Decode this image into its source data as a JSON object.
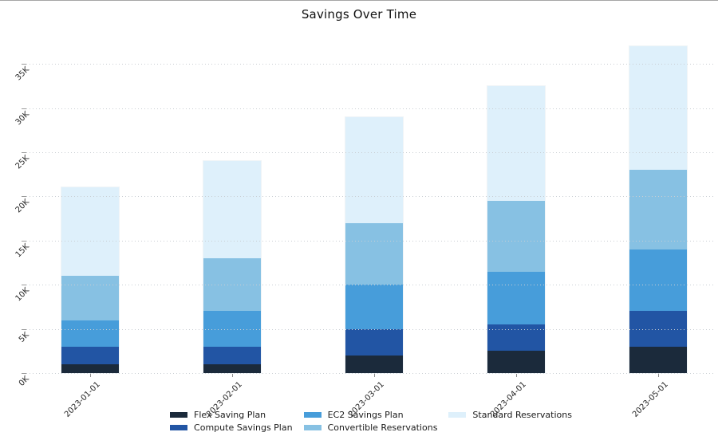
{
  "chart_data": {
    "type": "bar",
    "stacked": true,
    "title": "Savings Over Time",
    "categories": [
      "2023-01-01",
      "2023-02-01",
      "2023-03-01",
      "2023-04-01",
      "2023-05-01"
    ],
    "series": [
      {
        "name": "Flex Saving Plan",
        "color": "#1b2a3b",
        "values": [
          1000,
          1000,
          2000,
          2500,
          3000
        ]
      },
      {
        "name": "Compute Savings Plan",
        "color": "#2255a4",
        "values": [
          2000,
          2000,
          3000,
          3000,
          4000
        ]
      },
      {
        "name": "EC2 Savings Plan",
        "color": "#479dda",
        "values": [
          3000,
          4000,
          5000,
          6000,
          7000
        ]
      },
      {
        "name": "Convertible Reservations",
        "color": "#87c1e3",
        "values": [
          5000,
          6000,
          7000,
          8000,
          9000
        ]
      },
      {
        "name": "Standard Reservations",
        "color": "#def0fb",
        "values": [
          10000,
          11000,
          12000,
          13000,
          14000
        ]
      }
    ],
    "stack_totals": [
      21000,
      24000,
      29000,
      32500,
      37000
    ],
    "xlabel": "",
    "ylabel": "",
    "ylim": [
      0,
      37000
    ],
    "ytick_step": 5000,
    "ytick_labels": [
      "0K",
      "5K",
      "10K",
      "15K",
      "20K",
      "25K",
      "30K",
      "35K"
    ],
    "tick_rotation_deg": 45,
    "grid": "horizontal dotted",
    "grid_color": "#c9ced3",
    "legend_position": "bottom center",
    "legend_columns": [
      [
        0,
        1
      ],
      [
        2,
        3
      ],
      [
        4
      ]
    ]
  }
}
